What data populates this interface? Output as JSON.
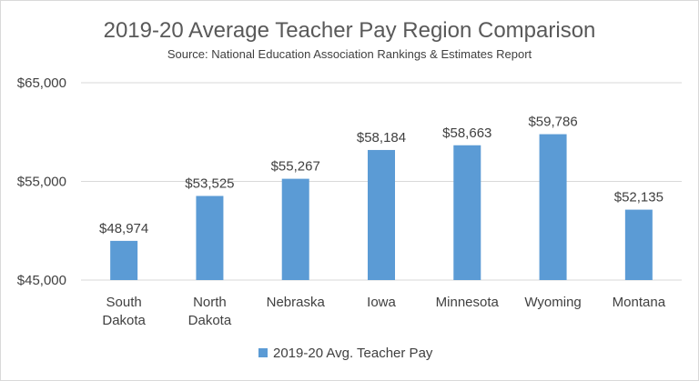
{
  "chart_data": {
    "type": "bar",
    "title": "2019-20 Average Teacher Pay Region Comparison",
    "subtitle": "Source: National Education Association Rankings & Estimates Report",
    "categories": [
      [
        "South",
        "Dakota"
      ],
      [
        "North",
        "Dakota"
      ],
      [
        "Nebraska"
      ],
      [
        "Iowa"
      ],
      [
        "Minnesota"
      ],
      [
        "Wyoming"
      ],
      [
        "Montana"
      ]
    ],
    "series": [
      {
        "name": "2019-20 Avg. Teacher Pay",
        "values": [
          48974,
          53525,
          55267,
          58184,
          58663,
          59786,
          52135
        ],
        "data_labels": [
          "$48,974",
          "$53,525",
          "$55,267",
          "$58,184",
          "$58,663",
          "$59,786",
          "$52,135"
        ],
        "color": "#5b9bd5"
      }
    ],
    "ylim": [
      45000,
      65000
    ],
    "yticks": [
      {
        "value": 45000,
        "label": "$45,000"
      },
      {
        "value": 55000,
        "label": "$55,000"
      },
      {
        "value": 65000,
        "label": "$65,000"
      }
    ],
    "grid": true,
    "legend": "bottom",
    "xlabel": "",
    "ylabel": ""
  }
}
